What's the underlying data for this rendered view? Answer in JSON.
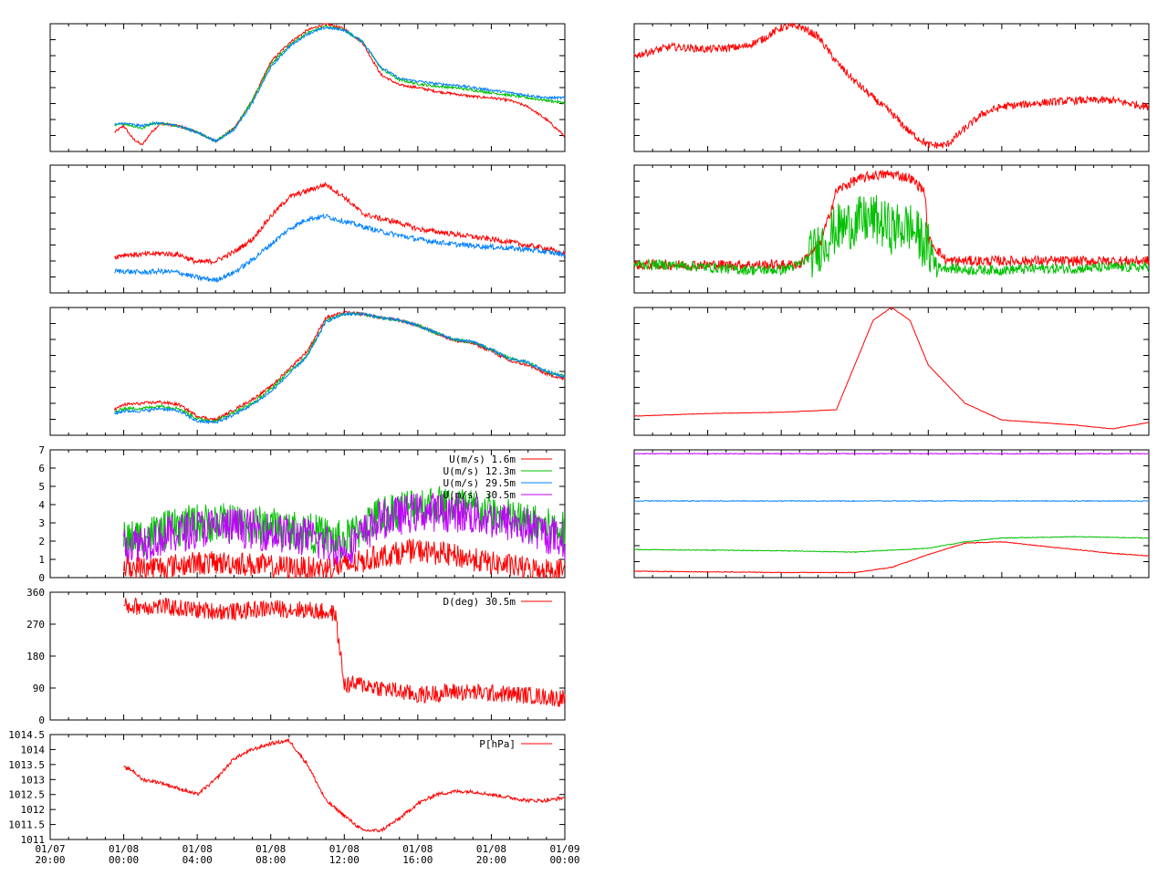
{
  "colors": {
    "red": "#ff0000",
    "green": "#00c000",
    "blue": "#0080ff",
    "purple": "#c000ff",
    "axis": "#000000"
  },
  "chart_data": [
    {
      "id": "temp-profile",
      "type": "line",
      "x_unit": "hours since 01/07 20:00",
      "xlim": [
        0,
        28
      ],
      "series": [
        {
          "color": "red",
          "x": [
            3.5,
            4,
            4.5,
            5,
            5.5,
            6,
            7,
            8,
            9,
            10,
            11,
            12,
            13,
            14,
            15,
            16,
            17,
            18,
            19,
            20,
            21,
            22,
            23,
            24,
            25,
            26,
            27,
            28
          ],
          "values": [
            0.15,
            0.2,
            0.1,
            0.05,
            0.15,
            0.22,
            0.2,
            0.15,
            0.08,
            0.18,
            0.4,
            0.7,
            0.85,
            0.95,
            1.0,
            0.96,
            0.85,
            0.6,
            0.52,
            0.5,
            0.47,
            0.45,
            0.43,
            0.42,
            0.4,
            0.35,
            0.25,
            0.12
          ]
        },
        {
          "color": "green",
          "x": [
            3.5,
            4,
            4.5,
            5,
            5.5,
            6,
            7,
            8,
            9,
            10,
            11,
            12,
            13,
            14,
            15,
            16,
            17,
            18,
            19,
            20,
            21,
            22,
            23,
            24,
            25,
            26,
            27,
            28
          ],
          "values": [
            0.2,
            0.22,
            0.2,
            0.18,
            0.22,
            0.22,
            0.2,
            0.15,
            0.08,
            0.18,
            0.4,
            0.68,
            0.83,
            0.93,
            0.98,
            0.95,
            0.86,
            0.65,
            0.56,
            0.53,
            0.51,
            0.5,
            0.48,
            0.46,
            0.44,
            0.42,
            0.4,
            0.38
          ]
        },
        {
          "color": "blue",
          "x": [
            3.5,
            4,
            4.5,
            5,
            5.5,
            6,
            7,
            8,
            9,
            10,
            11,
            12,
            13,
            14,
            15,
            16,
            17,
            18,
            19,
            20,
            21,
            22,
            23,
            24,
            25,
            26,
            27,
            28
          ],
          "values": [
            0.21,
            0.22,
            0.21,
            0.2,
            0.22,
            0.22,
            0.2,
            0.15,
            0.08,
            0.17,
            0.38,
            0.66,
            0.82,
            0.92,
            0.97,
            0.95,
            0.86,
            0.66,
            0.57,
            0.55,
            0.53,
            0.52,
            0.5,
            0.48,
            0.46,
            0.44,
            0.42,
            0.42
          ]
        }
      ]
    },
    {
      "id": "stepped-series",
      "type": "line",
      "xlim": [
        0,
        28
      ],
      "series": [
        {
          "color": "red",
          "x": [
            0,
            2,
            4,
            6,
            7,
            8,
            9,
            10,
            11,
            12,
            13,
            14,
            15,
            16,
            17,
            18,
            19,
            20,
            22,
            24,
            26,
            28
          ],
          "values": [
            0.75,
            0.82,
            0.8,
            0.82,
            0.88,
            0.97,
            0.98,
            0.9,
            0.7,
            0.55,
            0.42,
            0.3,
            0.15,
            0.05,
            0.05,
            0.18,
            0.3,
            0.35,
            0.38,
            0.4,
            0.4,
            0.35
          ]
        }
      ]
    },
    {
      "id": "humidity-profile",
      "type": "line",
      "xlim": [
        0,
        28
      ],
      "series": [
        {
          "color": "red",
          "x": [
            3.5,
            4,
            5,
            6,
            7,
            8,
            9,
            10,
            11,
            12,
            13,
            14,
            15,
            16,
            17,
            18,
            19,
            20,
            21,
            22,
            23,
            24,
            25,
            26,
            27,
            28
          ],
          "values": [
            0.28,
            0.3,
            0.3,
            0.31,
            0.3,
            0.24,
            0.25,
            0.32,
            0.42,
            0.6,
            0.75,
            0.8,
            0.85,
            0.75,
            0.62,
            0.58,
            0.55,
            0.5,
            0.48,
            0.46,
            0.44,
            0.42,
            0.4,
            0.37,
            0.35,
            0.3
          ]
        },
        {
          "color": "blue",
          "x": [
            3.5,
            4,
            5,
            6,
            7,
            8,
            9,
            10,
            11,
            12,
            13,
            14,
            15,
            16,
            17,
            18,
            19,
            20,
            21,
            22,
            23,
            24,
            25,
            26,
            27,
            28
          ],
          "values": [
            0.17,
            0.17,
            0.16,
            0.17,
            0.16,
            0.12,
            0.1,
            0.16,
            0.26,
            0.38,
            0.5,
            0.58,
            0.6,
            0.56,
            0.52,
            0.48,
            0.45,
            0.42,
            0.4,
            0.38,
            0.37,
            0.36,
            0.35,
            0.34,
            0.32,
            0.3
          ]
        }
      ]
    },
    {
      "id": "radiation-series",
      "type": "line",
      "xlim": [
        0,
        28
      ],
      "series": [
        {
          "color": "red",
          "x": [
            0,
            2,
            4,
            6,
            8,
            9,
            9.5,
            10,
            10.5,
            11,
            12,
            13,
            14,
            15,
            15.8,
            16,
            17,
            18,
            20,
            22,
            24,
            26,
            28
          ],
          "values": [
            0.22,
            0.22,
            0.22,
            0.22,
            0.22,
            0.22,
            0.3,
            0.35,
            0.55,
            0.8,
            0.88,
            0.92,
            0.93,
            0.9,
            0.8,
            0.42,
            0.25,
            0.25,
            0.25,
            0.25,
            0.25,
            0.25,
            0.25
          ]
        },
        {
          "color": "green",
          "x": [
            0,
            2,
            4,
            6,
            8,
            9,
            9.5,
            10,
            11,
            12,
            13,
            14,
            15,
            16,
            16.5,
            17,
            18,
            20,
            22,
            24,
            26,
            28
          ],
          "values": [
            0.22,
            0.22,
            0.2,
            0.18,
            0.18,
            0.22,
            0.28,
            0.35,
            0.5,
            0.55,
            0.58,
            0.5,
            0.52,
            0.35,
            0.2,
            0.2,
            0.18,
            0.18,
            0.19,
            0.19,
            0.2,
            0.2
          ]
        }
      ]
    },
    {
      "id": "temp-near-ground",
      "type": "line",
      "xlim": [
        0,
        28
      ],
      "series": [
        {
          "color": "red",
          "x": [
            3.5,
            4,
            5,
            6,
            7,
            8,
            9,
            10,
            11,
            12,
            13,
            14,
            15,
            16,
            17,
            18,
            19,
            20,
            21,
            22,
            23,
            24,
            25,
            26,
            27,
            28
          ],
          "values": [
            0.2,
            0.24,
            0.25,
            0.26,
            0.24,
            0.15,
            0.12,
            0.2,
            0.28,
            0.38,
            0.52,
            0.66,
            0.92,
            0.96,
            0.95,
            0.92,
            0.9,
            0.86,
            0.8,
            0.74,
            0.72,
            0.66,
            0.58,
            0.55,
            0.48,
            0.44
          ]
        },
        {
          "color": "green",
          "x": [
            3.5,
            4,
            5,
            6,
            7,
            8,
            9,
            10,
            11,
            12,
            13,
            14,
            15,
            16,
            17,
            18,
            19,
            20,
            21,
            22,
            23,
            24,
            25,
            26,
            27,
            28
          ],
          "values": [
            0.18,
            0.21,
            0.21,
            0.23,
            0.21,
            0.13,
            0.11,
            0.18,
            0.25,
            0.36,
            0.5,
            0.63,
            0.9,
            0.95,
            0.95,
            0.92,
            0.9,
            0.86,
            0.8,
            0.75,
            0.73,
            0.67,
            0.6,
            0.57,
            0.5,
            0.46
          ]
        },
        {
          "color": "blue",
          "x": [
            3.5,
            4,
            5,
            6,
            7,
            8,
            9,
            10,
            11,
            12,
            13,
            14,
            15,
            16,
            17,
            18,
            19,
            20,
            21,
            22,
            23,
            24,
            25,
            26,
            27,
            28
          ],
          "values": [
            0.17,
            0.19,
            0.19,
            0.21,
            0.19,
            0.11,
            0.1,
            0.16,
            0.24,
            0.34,
            0.48,
            0.62,
            0.89,
            0.95,
            0.95,
            0.92,
            0.9,
            0.86,
            0.8,
            0.75,
            0.73,
            0.67,
            0.6,
            0.57,
            0.5,
            0.46
          ]
        }
      ]
    },
    {
      "id": "single-peak",
      "type": "line",
      "xlim": [
        0,
        28
      ],
      "series": [
        {
          "color": "red",
          "x": [
            0,
            4,
            8,
            11,
            12,
            13,
            14,
            15,
            16,
            17,
            18,
            20,
            22,
            24,
            26,
            28
          ],
          "values": [
            0.15,
            0.17,
            0.18,
            0.2,
            0.55,
            0.9,
            1.0,
            0.9,
            0.55,
            0.4,
            0.25,
            0.12,
            0.1,
            0.08,
            0.05,
            0.1
          ]
        }
      ]
    },
    {
      "id": "wind-speed",
      "type": "line",
      "ylim": [
        0,
        7
      ],
      "yticks": [
        "0",
        "1",
        "2",
        "3",
        "4",
        "5",
        "6",
        "7"
      ],
      "xlim": [
        0,
        28
      ],
      "legend": [
        {
          "label": "U(m/s)  1.6m",
          "color": "red"
        },
        {
          "label": "U(m/s) 12.3m",
          "color": "green"
        },
        {
          "label": "U(m/s) 29.5m",
          "color": "blue"
        },
        {
          "label": "U(m/s) 30.5m",
          "color": "purple"
        }
      ],
      "series": [
        {
          "color": "green",
          "x": [
            4,
            6,
            8,
            10,
            12,
            14,
            16,
            18,
            20,
            22,
            24,
            26,
            28
          ],
          "values": [
            2.0,
            2.5,
            3.0,
            3.0,
            2.8,
            2.5,
            2.0,
            3.5,
            4.0,
            4.0,
            3.5,
            3.0,
            2.5
          ]
        },
        {
          "color": "purple",
          "x": [
            4,
            6,
            8,
            10,
            12,
            14,
            16,
            18,
            20,
            22,
            24,
            26,
            28
          ],
          "values": [
            1.8,
            2.2,
            2.7,
            2.8,
            2.5,
            2.2,
            1.5,
            3.2,
            3.6,
            3.6,
            3.2,
            2.8,
            2.0
          ]
        },
        {
          "color": "red",
          "x": [
            4,
            6,
            8,
            10,
            12,
            14,
            16,
            18,
            20,
            22,
            24,
            26,
            28
          ],
          "values": [
            0.5,
            0.6,
            0.8,
            0.8,
            0.6,
            0.5,
            0.6,
            1.2,
            1.5,
            1.2,
            0.8,
            0.5,
            0.4
          ]
        }
      ]
    },
    {
      "id": "height-lines",
      "type": "line",
      "xlim": [
        0,
        28
      ],
      "series": [
        {
          "color": "purple",
          "x": [
            0,
            28
          ],
          "values": [
            0.97,
            0.97
          ]
        },
        {
          "color": "blue",
          "x": [
            0,
            28
          ],
          "values": [
            0.6,
            0.6
          ]
        },
        {
          "color": "green",
          "x": [
            0,
            8,
            12,
            16,
            18,
            20,
            24,
            28
          ],
          "values": [
            0.22,
            0.21,
            0.2,
            0.23,
            0.28,
            0.31,
            0.32,
            0.31
          ]
        },
        {
          "color": "red",
          "x": [
            0,
            8,
            12,
            14,
            16,
            18,
            20,
            22,
            24,
            26,
            28
          ],
          "values": [
            0.05,
            0.04,
            0.04,
            0.08,
            0.18,
            0.27,
            0.28,
            0.25,
            0.22,
            0.19,
            0.17
          ]
        }
      ]
    },
    {
      "id": "wind-direction",
      "type": "line",
      "ylim": [
        0,
        360
      ],
      "yticks": [
        "0",
        "90",
        "180",
        "270",
        "360"
      ],
      "xlim": [
        0,
        28
      ],
      "legend": [
        {
          "label": "D(deg)  30.5m",
          "color": "red"
        }
      ],
      "series": [
        {
          "color": "red",
          "x": [
            4,
            6,
            8,
            10,
            12,
            14,
            15.5,
            16,
            17,
            18,
            20,
            22,
            24,
            26,
            28
          ],
          "values": [
            320,
            320,
            310,
            305,
            315,
            310,
            300,
            100,
            100,
            90,
            70,
            80,
            75,
            70,
            60
          ]
        }
      ]
    },
    {
      "id": "pressure",
      "type": "line",
      "ylim": [
        1011,
        1014.5
      ],
      "yticks": [
        "1011",
        "1011.5",
        "1012",
        "1012.5",
        "1013",
        "1013.5",
        "1014",
        "1014.5"
      ],
      "xlim": [
        0,
        28
      ],
      "xticks": [
        {
          "l1": "01/07",
          "l2": "20:00"
        },
        {
          "l1": "01/08",
          "l2": "00:00"
        },
        {
          "l1": "01/08",
          "l2": "04:00"
        },
        {
          "l1": "01/08",
          "l2": "08:00"
        },
        {
          "l1": "01/08",
          "l2": "12:00"
        },
        {
          "l1": "01/08",
          "l2": "16:00"
        },
        {
          "l1": "01/08",
          "l2": "20:00"
        },
        {
          "l1": "01/09",
          "l2": "00:00"
        }
      ],
      "legend": [
        {
          "label": "P[hPa]",
          "color": "red"
        }
      ],
      "series": [
        {
          "color": "red",
          "x": [
            4,
            4.5,
            5,
            6,
            7,
            8,
            9,
            10,
            11,
            12,
            13,
            14,
            15,
            16,
            17,
            18,
            19,
            20,
            21,
            22,
            23,
            24,
            25,
            26,
            27,
            28
          ],
          "values": [
            1013.4,
            1013.3,
            1013.0,
            1012.9,
            1012.7,
            1012.5,
            1013.0,
            1013.7,
            1014.0,
            1014.2,
            1014.3,
            1013.5,
            1012.3,
            1011.8,
            1011.3,
            1011.3,
            1011.7,
            1012.2,
            1012.5,
            1012.6,
            1012.6,
            1012.5,
            1012.4,
            1012.3,
            1012.3,
            1012.4
          ]
        }
      ]
    }
  ]
}
